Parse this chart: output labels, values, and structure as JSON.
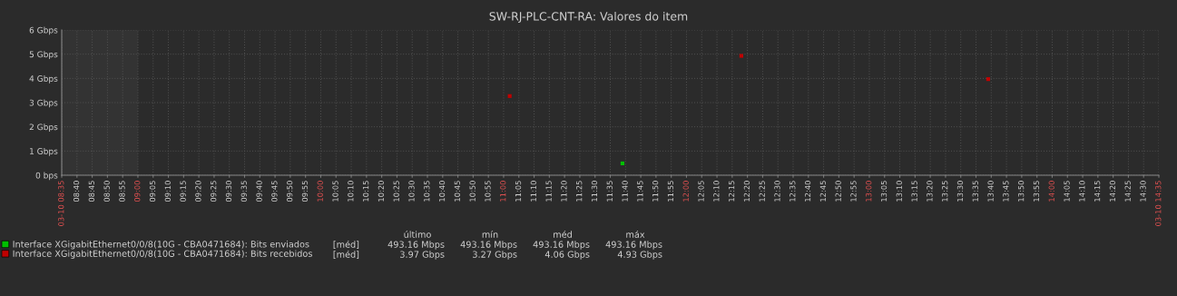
{
  "chart_data": {
    "type": "scatter",
    "title": "SW-RJ-PLC-CNT-RA: Valores do item",
    "series": [
      {
        "name": "Interface XGigabitEthernet0/0/8(10G - CBA0471684): Bits enviados",
        "color": "#00c000",
        "x": [
          11.65
        ],
        "values": [
          0.49
        ]
      },
      {
        "name": "Interface XGigabitEthernet0/0/8(10G - CBA0471684): Bits recebidos",
        "color": "#c00000",
        "x": [
          11.0333,
          12.3,
          13.65
        ],
        "values": [
          3.27,
          4.93,
          3.97
        ]
      }
    ],
    "marker": "square",
    "grid": true,
    "legend": "bottom left",
    "ylim": [
      0,
      6
    ],
    "yticks": [
      {
        "value": 0,
        "label": "0 bps"
      },
      {
        "value": 1,
        "label": "1 Gbps"
      },
      {
        "value": 2,
        "label": "2 Gbps"
      },
      {
        "value": 3,
        "label": "3 Gbps"
      },
      {
        "value": 4,
        "label": "4 Gbps"
      },
      {
        "value": 5,
        "label": "5 Gbps"
      },
      {
        "value": 6,
        "label": "6 Gbps"
      }
    ],
    "xlim": [
      8.5833,
      14.5833
    ],
    "xticks": [
      {
        "value": 8.5833,
        "label": "03-10 08:35"
      },
      {
        "value": 8.6667,
        "label": "08:40"
      },
      {
        "value": 8.75,
        "label": "08:45"
      },
      {
        "value": 8.8333,
        "label": "08:50"
      },
      {
        "value": 8.9167,
        "label": "08:55"
      },
      {
        "value": 9,
        "label": "09:00"
      },
      {
        "value": 9.0833,
        "label": "09:05"
      },
      {
        "value": 9.1667,
        "label": "09:10"
      },
      {
        "value": 9.25,
        "label": "09:15"
      },
      {
        "value": 9.3333,
        "label": "09:20"
      },
      {
        "value": 9.4167,
        "label": "09:25"
      },
      {
        "value": 9.5,
        "label": "09:30"
      },
      {
        "value": 9.5833,
        "label": "09:35"
      },
      {
        "value": 9.6667,
        "label": "09:40"
      },
      {
        "value": 9.75,
        "label": "09:45"
      },
      {
        "value": 9.8333,
        "label": "09:50"
      },
      {
        "value": 9.9167,
        "label": "09:55"
      },
      {
        "value": 10,
        "label": "10:00"
      },
      {
        "value": 10.0833,
        "label": "10:05"
      },
      {
        "value": 10.1667,
        "label": "10:10"
      },
      {
        "value": 10.25,
        "label": "10:15"
      },
      {
        "value": 10.3333,
        "label": "10:20"
      },
      {
        "value": 10.4167,
        "label": "10:25"
      },
      {
        "value": 10.5,
        "label": "10:30"
      },
      {
        "value": 10.5833,
        "label": "10:35"
      },
      {
        "value": 10.6667,
        "label": "10:40"
      },
      {
        "value": 10.75,
        "label": "10:45"
      },
      {
        "value": 10.8333,
        "label": "10:50"
      },
      {
        "value": 10.9167,
        "label": "10:55"
      },
      {
        "value": 11,
        "label": "11:00"
      },
      {
        "value": 11.0833,
        "label": "11:05"
      },
      {
        "value": 11.1667,
        "label": "11:10"
      },
      {
        "value": 11.25,
        "label": "11:15"
      },
      {
        "value": 11.3333,
        "label": "11:20"
      },
      {
        "value": 11.4167,
        "label": "11:25"
      },
      {
        "value": 11.5,
        "label": "11:30"
      },
      {
        "value": 11.5833,
        "label": "11:35"
      },
      {
        "value": 11.6667,
        "label": "11:40"
      },
      {
        "value": 11.75,
        "label": "11:45"
      },
      {
        "value": 11.8333,
        "label": "11:50"
      },
      {
        "value": 11.9167,
        "label": "11:55"
      },
      {
        "value": 12,
        "label": "12:00"
      },
      {
        "value": 12.0833,
        "label": "12:05"
      },
      {
        "value": 12.1667,
        "label": "12:10"
      },
      {
        "value": 12.25,
        "label": "12:15"
      },
      {
        "value": 12.3333,
        "label": "12:20"
      },
      {
        "value": 12.4167,
        "label": "12:25"
      },
      {
        "value": 12.5,
        "label": "12:30"
      },
      {
        "value": 12.5833,
        "label": "12:35"
      },
      {
        "value": 12.6667,
        "label": "12:40"
      },
      {
        "value": 12.75,
        "label": "12:45"
      },
      {
        "value": 12.8333,
        "label": "12:50"
      },
      {
        "value": 12.9167,
        "label": "12:55"
      },
      {
        "value": 13,
        "label": "13:00"
      },
      {
        "value": 13.0833,
        "label": "13:05"
      },
      {
        "value": 13.1667,
        "label": "13:10"
      },
      {
        "value": 13.25,
        "label": "13:15"
      },
      {
        "value": 13.3333,
        "label": "13:20"
      },
      {
        "value": 13.4167,
        "label": "13:25"
      },
      {
        "value": 13.5,
        "label": "13:30"
      },
      {
        "value": 13.5833,
        "label": "13:35"
      },
      {
        "value": 13.6667,
        "label": "13:40"
      },
      {
        "value": 13.75,
        "label": "13:45"
      },
      {
        "value": 13.8333,
        "label": "13:50"
      },
      {
        "value": 13.9167,
        "label": "13:55"
      },
      {
        "value": 14,
        "label": "14:00"
      },
      {
        "value": 14.0833,
        "label": "14:05"
      },
      {
        "value": 14.1667,
        "label": "14:10"
      },
      {
        "value": 14.25,
        "label": "14:15"
      },
      {
        "value": 14.3333,
        "label": "14:20"
      },
      {
        "value": 14.4167,
        "label": "14:25"
      },
      {
        "value": 14.5,
        "label": "14:30"
      },
      {
        "value": 14.5833,
        "label": "03-10 14:35"
      }
    ],
    "bands": [
      {
        "axis": "x",
        "from": 8.5833,
        "to": 9,
        "color": "#333333"
      }
    ],
    "annotations": [
      "último",
      "mín",
      "méd",
      "máx",
      "[méd]",
      "493.16 Mbps",
      "493.16 Mbps",
      "493.16 Mbps",
      "493.16 Mbps",
      "[méd]",
      "3.97 Gbps",
      "3.27 Gbps",
      "4.06 Gbps",
      "4.93 Gbps"
    ]
  }
}
